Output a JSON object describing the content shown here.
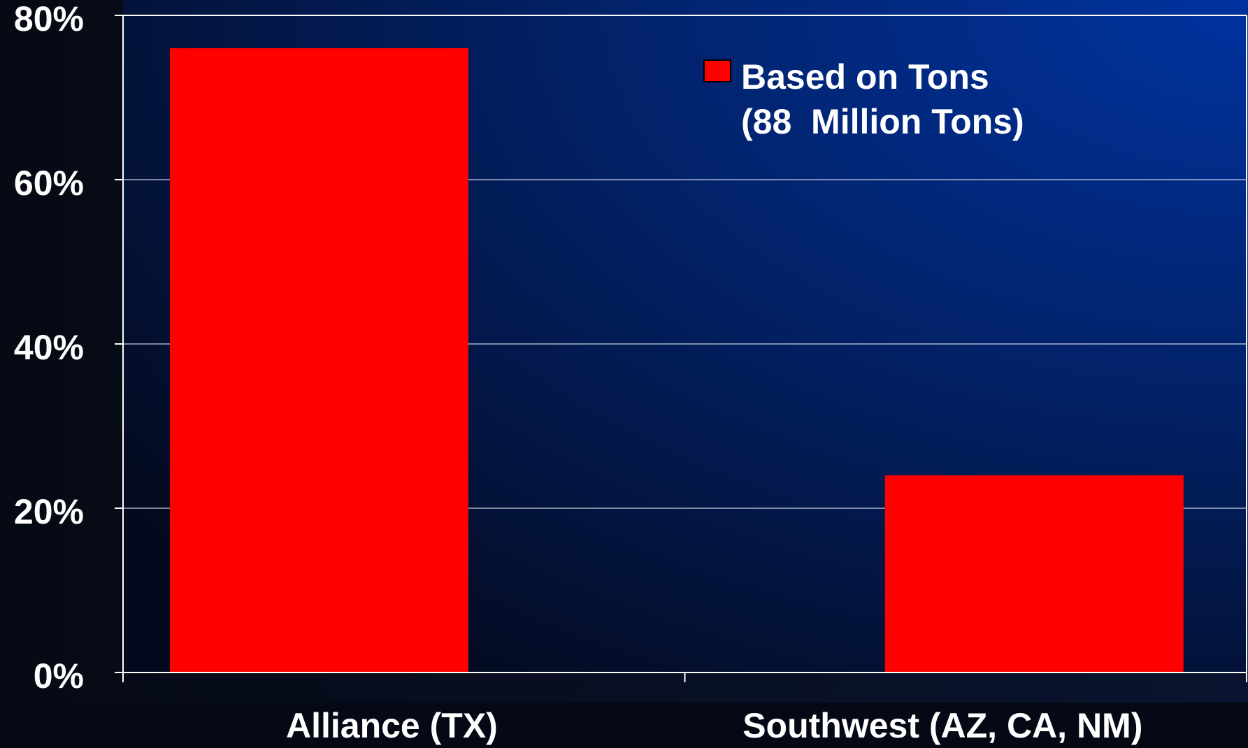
{
  "chart_data": {
    "type": "bar",
    "categories": [
      "Alliance (TX)",
      "Southwest (AZ, CA, NM)"
    ],
    "series": [
      {
        "name": "Based on Tons\n(88  Million Tons)",
        "color": "#ff0000",
        "values": [
          76,
          24
        ]
      }
    ],
    "ylim": [
      0,
      80
    ],
    "yticks": [
      {
        "value": 0,
        "label": "0%"
      },
      {
        "value": 20,
        "label": "20%"
      },
      {
        "value": 40,
        "label": "40%"
      },
      {
        "value": 60,
        "label": "60%"
      },
      {
        "value": 80,
        "label": "80%"
      }
    ],
    "grid": true,
    "legend": "top-right"
  }
}
